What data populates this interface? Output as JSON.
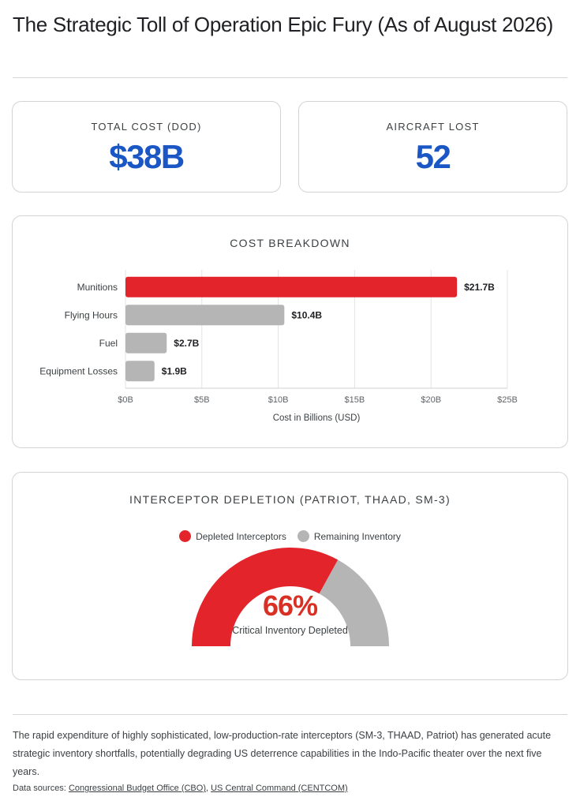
{
  "title": "The Strategic Toll of Operation Epic Fury (As of August 2026)",
  "kpis": {
    "total_cost": {
      "label": "TOTAL COST (DOD)",
      "value": "$38B"
    },
    "aircraft_lost": {
      "label": "AIRCRAFT LOST",
      "value": "52"
    }
  },
  "colors": {
    "accent_blue": "#1a56c4",
    "accent_red": "#e3242b",
    "neutral_gray": "#b5b5b5"
  },
  "chart_data": [
    {
      "type": "bar",
      "orientation": "horizontal",
      "title": "COST BREAKDOWN",
      "categories": [
        "Munitions",
        "Flying Hours",
        "Fuel",
        "Equipment Losses"
      ],
      "values": [
        21.7,
        10.4,
        2.7,
        1.9
      ],
      "value_labels": [
        "$21.7B",
        "$10.4B",
        "$2.7B",
        "$1.9B"
      ],
      "bar_colors": [
        "#e3242b",
        "#b5b5b5",
        "#b5b5b5",
        "#b5b5b5"
      ],
      "xlim": [
        0,
        25
      ],
      "xticks": [
        0,
        5,
        10,
        15,
        20,
        25
      ],
      "xtick_labels": [
        "$0B",
        "$5B",
        "$10B",
        "$15B",
        "$20B",
        "$25B"
      ],
      "xlabel": "Cost in Billions (USD)",
      "grid": true
    },
    {
      "type": "pie",
      "style": "half-donut",
      "title": "INTERCEPTOR DEPLETION (PATRIOT, THAAD, SM-3)",
      "series": [
        {
          "name": "Depleted Interceptors",
          "value": 66,
          "color": "#e3242b"
        },
        {
          "name": "Remaining Inventory",
          "value": 34,
          "color": "#b5b5b5"
        }
      ],
      "center_value": "66%",
      "center_caption": "Critical Inventory Depleted",
      "legend": "top"
    }
  ],
  "footnote": "The rapid expenditure of highly sophisticated, low-production-rate interceptors (SM-3, THAAD, Patriot) has generated acute strategic inventory shortfalls, potentially degrading US deterrence capabilities in the Indo-Pacific theater over the next five years.",
  "sources": {
    "prefix": "Data sources:",
    "links": [
      "Congressional Budget Office (CBO)",
      "US Central Command (CENTCOM)"
    ],
    "separator": ","
  }
}
